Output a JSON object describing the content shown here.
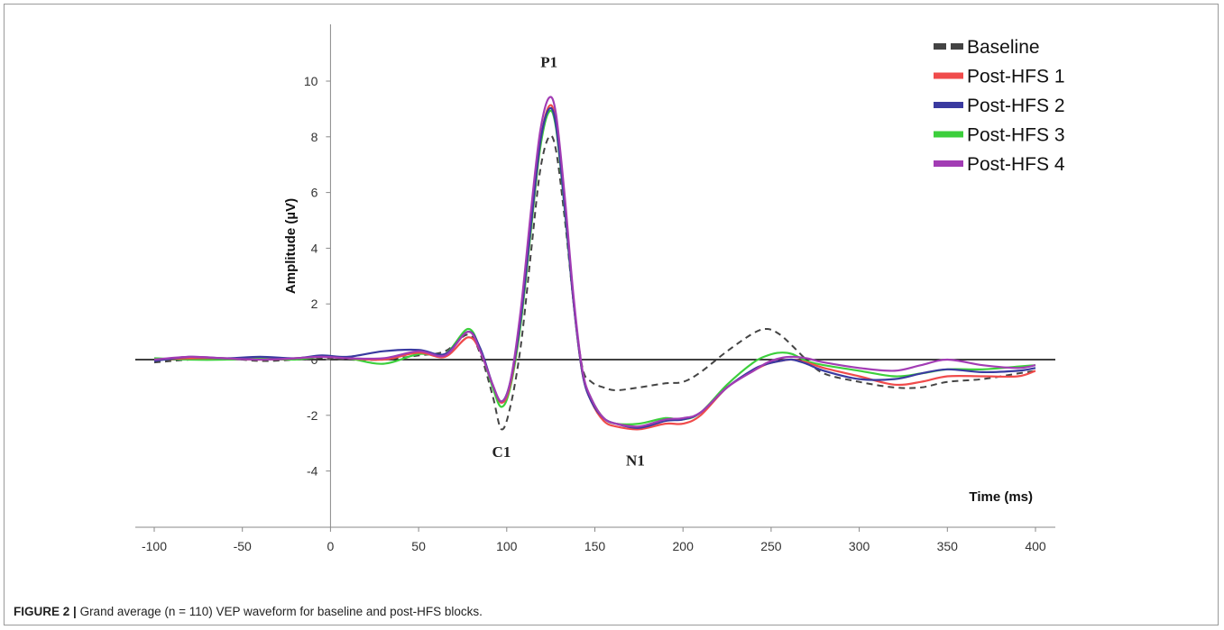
{
  "caption": {
    "figure_label": "FIGURE 2 |",
    "text": "Grand average (n = 110) VEP waveform for baseline and post-HFS blocks."
  },
  "colors": {
    "baseline": "#444444",
    "post1": "#f04b4b",
    "post2": "#3a3aa0",
    "post3": "#3ccf3c",
    "post4": "#a23cb4"
  },
  "chart_data": {
    "type": "line",
    "xlabel": "Time (ms)",
    "ylabel": "Amplitude (µV)",
    "xlim": [
      -100,
      400
    ],
    "ylim": [
      -5,
      12
    ],
    "xticks": [
      -100,
      -50,
      0,
      50,
      100,
      150,
      200,
      250,
      300,
      350,
      400
    ],
    "yticks": [
      -4,
      -2,
      0,
      2,
      4,
      6,
      8,
      10
    ],
    "legend_position": "top-right",
    "annotations": [
      {
        "text": "P1",
        "x": 124,
        "y": 10.5
      },
      {
        "text": "C1",
        "x": 97,
        "y": -3.5
      },
      {
        "text": "N1",
        "x": 173,
        "y": -3.8
      }
    ],
    "series": [
      {
        "name": "Baseline",
        "style": "dashed",
        "x": [
          -100,
          -80,
          -60,
          -40,
          -20,
          -5,
          10,
          30,
          50,
          65,
          78,
          85,
          92,
          97,
          102,
          108,
          114,
          119,
          124,
          128,
          133,
          138,
          143,
          148,
          155,
          162,
          175,
          190,
          200,
          210,
          225,
          240,
          248,
          255,
          262,
          270,
          280,
          300,
          320,
          335,
          350,
          370,
          390,
          400
        ],
        "y": [
          -0.1,
          0,
          0.05,
          -0.05,
          0,
          0.05,
          0,
          0,
          0.15,
          0.3,
          0.9,
          0.2,
          -1.3,
          -2.5,
          -1.7,
          0.5,
          4,
          6.8,
          8,
          7.5,
          5,
          2,
          -0.3,
          -0.8,
          -1,
          -1.1,
          -1,
          -0.85,
          -0.8,
          -0.45,
          0.3,
          0.95,
          1.1,
          0.9,
          0.5,
          0,
          -0.5,
          -0.8,
          -1,
          -1,
          -0.8,
          -0.7,
          -0.5,
          -0.4
        ]
      },
      {
        "name": "Post-HFS 1",
        "x": [
          -100,
          -80,
          -60,
          -40,
          -20,
          -5,
          10,
          30,
          50,
          65,
          78,
          85,
          92,
          97,
          102,
          108,
          114,
          119,
          124,
          128,
          133,
          138,
          143,
          148,
          155,
          162,
          175,
          190,
          200,
          210,
          225,
          240,
          248,
          255,
          262,
          270,
          280,
          300,
          320,
          335,
          350,
          370,
          390,
          400
        ],
        "y": [
          0,
          0.05,
          0.05,
          0,
          0.05,
          0.1,
          0.05,
          0,
          0.25,
          0.1,
          0.8,
          0.3,
          -0.9,
          -1.55,
          -0.9,
          1.5,
          5,
          7.8,
          9.1,
          8.5,
          5.5,
          2,
          -0.5,
          -1.5,
          -2.2,
          -2.4,
          -2.5,
          -2.3,
          -2.3,
          -2,
          -1,
          -0.4,
          -0.15,
          -0.05,
          0,
          -0.1,
          -0.3,
          -0.6,
          -0.9,
          -0.8,
          -0.6,
          -0.6,
          -0.6,
          -0.4
        ]
      },
      {
        "name": "Post-HFS 2",
        "x": [
          -100,
          -80,
          -60,
          -40,
          -20,
          -5,
          10,
          30,
          50,
          65,
          78,
          85,
          92,
          97,
          102,
          108,
          114,
          119,
          124,
          128,
          133,
          138,
          143,
          148,
          155,
          162,
          175,
          190,
          200,
          210,
          225,
          240,
          248,
          255,
          262,
          270,
          280,
          300,
          320,
          335,
          350,
          370,
          390,
          400
        ],
        "y": [
          -0.05,
          0.1,
          0.05,
          0.1,
          0.05,
          0.15,
          0.1,
          0.3,
          0.35,
          0.2,
          1,
          0.4,
          -0.9,
          -1.5,
          -0.8,
          1.5,
          5,
          7.8,
          9,
          8.4,
          5.4,
          2,
          -0.5,
          -1.5,
          -2.1,
          -2.3,
          -2.45,
          -2.2,
          -2.15,
          -1.9,
          -1,
          -0.35,
          -0.15,
          -0.05,
          0,
          -0.15,
          -0.4,
          -0.7,
          -0.7,
          -0.5,
          -0.35,
          -0.45,
          -0.4,
          -0.3
        ]
      },
      {
        "name": "Post-HFS 3",
        "x": [
          -100,
          -80,
          -60,
          -40,
          -20,
          -5,
          10,
          30,
          50,
          65,
          78,
          85,
          92,
          97,
          102,
          108,
          114,
          119,
          124,
          128,
          133,
          138,
          143,
          148,
          155,
          162,
          175,
          190,
          200,
          210,
          225,
          240,
          248,
          255,
          262,
          270,
          280,
          300,
          320,
          335,
          350,
          370,
          390,
          400
        ],
        "y": [
          0.05,
          0,
          0,
          0.05,
          0,
          0.1,
          0.05,
          -0.15,
          0.2,
          0.2,
          1.1,
          0.35,
          -1,
          -1.7,
          -1,
          1.3,
          4.8,
          7.6,
          8.9,
          8.3,
          5.3,
          2,
          -0.5,
          -1.4,
          -2.1,
          -2.3,
          -2.3,
          -2.1,
          -2.15,
          -1.9,
          -0.9,
          -0.1,
          0.15,
          0.25,
          0.2,
          -0.05,
          -0.2,
          -0.4,
          -0.6,
          -0.5,
          -0.35,
          -0.35,
          -0.25,
          -0.2
        ]
      },
      {
        "name": "Post-HFS 4",
        "x": [
          -100,
          -80,
          -60,
          -40,
          -20,
          -5,
          10,
          30,
          50,
          65,
          78,
          85,
          92,
          97,
          102,
          108,
          114,
          119,
          124,
          128,
          133,
          138,
          143,
          148,
          155,
          162,
          175,
          190,
          200,
          210,
          225,
          240,
          248,
          255,
          262,
          270,
          280,
          300,
          320,
          335,
          350,
          370,
          390,
          400
        ],
        "y": [
          0,
          0.1,
          0.05,
          0,
          0.05,
          0.1,
          0.05,
          0.05,
          0.3,
          0.15,
          1,
          0.3,
          -0.9,
          -1.5,
          -0.8,
          1.8,
          5.5,
          8.2,
          9.4,
          8.8,
          5.8,
          2.2,
          -0.4,
          -1.4,
          -2.1,
          -2.3,
          -2.4,
          -2.15,
          -2.1,
          -1.9,
          -1,
          -0.4,
          -0.1,
          0.05,
          0.1,
          0.05,
          -0.1,
          -0.3,
          -0.4,
          -0.2,
          0,
          -0.2,
          -0.3,
          -0.2
        ]
      }
    ]
  }
}
